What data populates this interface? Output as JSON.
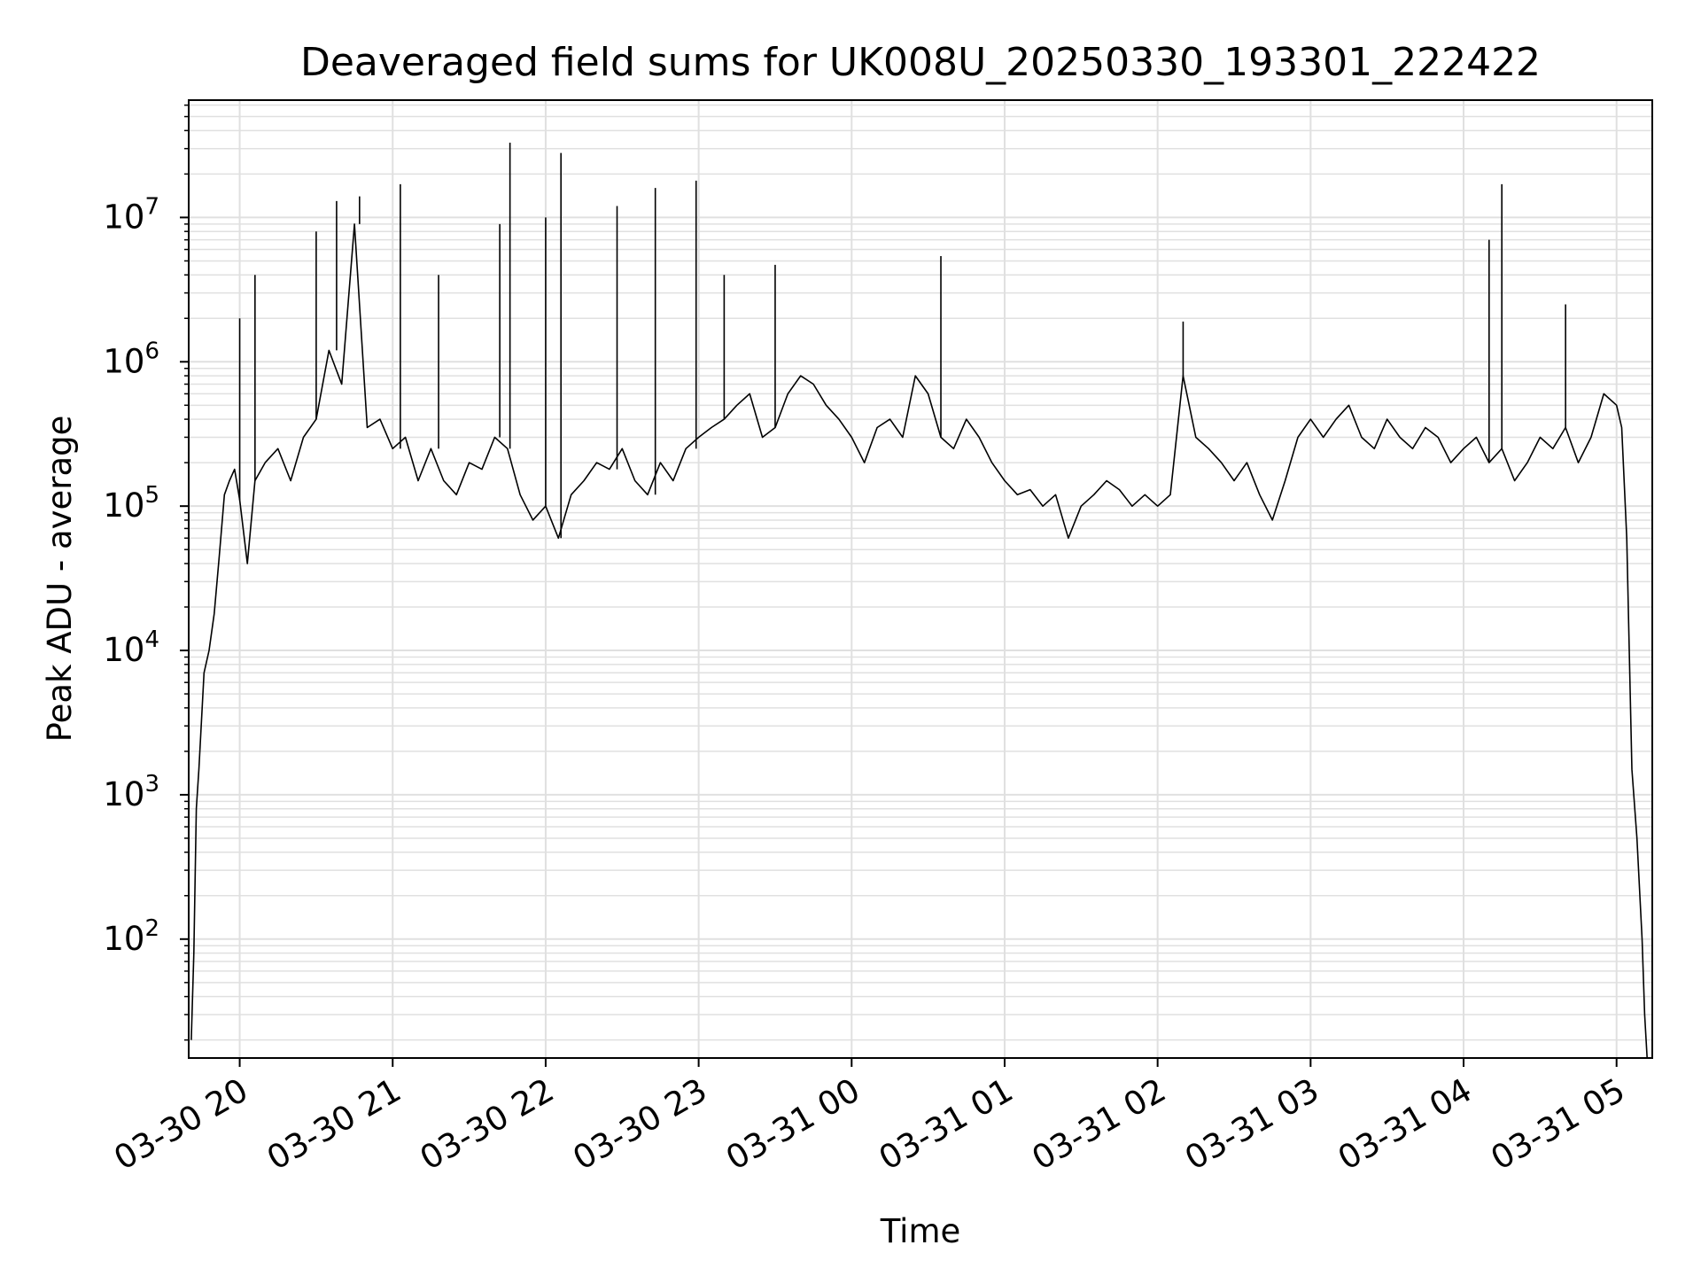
{
  "chart_data": {
    "type": "line",
    "title": "Deaveraged field sums for UK008U_20250330_193301_222422",
    "xlabel": "Time",
    "ylabel": "Peak ADU - average",
    "y_scale": "log",
    "ylim": [
      15,
      65000000
    ],
    "xlim": [
      "2025-03-30 19:40",
      "2025-03-31 05:14"
    ],
    "grid": true,
    "grid_minor": true,
    "line_color": "#000000",
    "grid_color": "#e0e0e0",
    "x_ticks": [
      {
        "t": "2025-03-30 20:00",
        "label": "03-30 20"
      },
      {
        "t": "2025-03-30 21:00",
        "label": "03-30 21"
      },
      {
        "t": "2025-03-30 22:00",
        "label": "03-30 22"
      },
      {
        "t": "2025-03-30 23:00",
        "label": "03-30 23"
      },
      {
        "t": "2025-03-31 00:00",
        "label": "03-31 00"
      },
      {
        "t": "2025-03-31 01:00",
        "label": "03-31 01"
      },
      {
        "t": "2025-03-31 02:00",
        "label": "03-31 02"
      },
      {
        "t": "2025-03-31 03:00",
        "label": "03-31 03"
      },
      {
        "t": "2025-03-31 04:00",
        "label": "03-31 04"
      },
      {
        "t": "2025-03-31 05:00",
        "label": "03-31 05"
      }
    ],
    "y_ticks": [
      {
        "value": 100,
        "base": "10",
        "exp": "2"
      },
      {
        "value": 1000,
        "base": "10",
        "exp": "3"
      },
      {
        "value": 10000,
        "base": "10",
        "exp": "4"
      },
      {
        "value": 100000,
        "base": "10",
        "exp": "5"
      },
      {
        "value": 1000000,
        "base": "10",
        "exp": "6"
      },
      {
        "value": 10000000,
        "base": "10",
        "exp": "7"
      }
    ],
    "x": [
      "2025-03-30 19:41",
      "2025-03-30 19:42",
      "2025-03-30 19:43",
      "2025-03-30 19:44",
      "2025-03-30 19:46",
      "2025-03-30 19:48",
      "2025-03-30 19:50",
      "2025-03-30 19:52",
      "2025-03-30 19:54",
      "2025-03-30 19:56",
      "2025-03-30 19:58",
      "2025-03-30 20:00",
      "2025-03-30 20:03",
      "2025-03-30 20:06",
      "2025-03-30 20:10",
      "2025-03-30 20:15",
      "2025-03-30 20:20",
      "2025-03-30 20:25",
      "2025-03-30 20:30",
      "2025-03-30 20:35",
      "2025-03-30 20:40",
      "2025-03-30 20:45",
      "2025-03-30 20:50",
      "2025-03-30 20:55",
      "2025-03-30 21:00",
      "2025-03-30 21:05",
      "2025-03-30 21:10",
      "2025-03-30 21:15",
      "2025-03-30 21:20",
      "2025-03-30 21:25",
      "2025-03-30 21:30",
      "2025-03-30 21:35",
      "2025-03-30 21:40",
      "2025-03-30 21:45",
      "2025-03-30 21:50",
      "2025-03-30 21:55",
      "2025-03-30 22:00",
      "2025-03-30 22:05",
      "2025-03-30 22:10",
      "2025-03-30 22:15",
      "2025-03-30 22:20",
      "2025-03-30 22:25",
      "2025-03-30 22:30",
      "2025-03-30 22:35",
      "2025-03-30 22:40",
      "2025-03-30 22:45",
      "2025-03-30 22:50",
      "2025-03-30 22:55",
      "2025-03-30 23:00",
      "2025-03-30 23:05",
      "2025-03-30 23:10",
      "2025-03-30 23:15",
      "2025-03-30 23:20",
      "2025-03-30 23:25",
      "2025-03-30 23:30",
      "2025-03-30 23:35",
      "2025-03-30 23:40",
      "2025-03-30 23:45",
      "2025-03-30 23:50",
      "2025-03-30 23:55",
      "2025-03-31 00:00",
      "2025-03-31 00:05",
      "2025-03-31 00:10",
      "2025-03-31 00:15",
      "2025-03-31 00:20",
      "2025-03-31 00:25",
      "2025-03-31 00:30",
      "2025-03-31 00:35",
      "2025-03-31 00:40",
      "2025-03-31 00:45",
      "2025-03-31 00:50",
      "2025-03-31 00:55",
      "2025-03-31 01:00",
      "2025-03-31 01:05",
      "2025-03-31 01:10",
      "2025-03-31 01:15",
      "2025-03-31 01:20",
      "2025-03-31 01:25",
      "2025-03-31 01:30",
      "2025-03-31 01:35",
      "2025-03-31 01:40",
      "2025-03-31 01:45",
      "2025-03-31 01:50",
      "2025-03-31 01:55",
      "2025-03-31 02:00",
      "2025-03-31 02:05",
      "2025-03-31 02:10",
      "2025-03-31 02:15",
      "2025-03-31 02:20",
      "2025-03-31 02:25",
      "2025-03-31 02:30",
      "2025-03-31 02:35",
      "2025-03-31 02:40",
      "2025-03-31 02:45",
      "2025-03-31 02:50",
      "2025-03-31 02:55",
      "2025-03-31 03:00",
      "2025-03-31 03:05",
      "2025-03-31 03:10",
      "2025-03-31 03:15",
      "2025-03-31 03:20",
      "2025-03-31 03:25",
      "2025-03-31 03:30",
      "2025-03-31 03:35",
      "2025-03-31 03:40",
      "2025-03-31 03:45",
      "2025-03-31 03:50",
      "2025-03-31 03:55",
      "2025-03-31 04:00",
      "2025-03-31 04:05",
      "2025-03-31 04:10",
      "2025-03-31 04:15",
      "2025-03-31 04:20",
      "2025-03-31 04:25",
      "2025-03-31 04:30",
      "2025-03-31 04:35",
      "2025-03-31 04:40",
      "2025-03-31 04:45",
      "2025-03-31 04:50",
      "2025-03-31 04:55",
      "2025-03-31 05:00",
      "2025-03-31 05:02",
      "2025-03-31 05:04",
      "2025-03-31 05:06",
      "2025-03-31 05:08",
      "2025-03-31 05:10",
      "2025-03-31 05:11",
      "2025-03-31 05:12"
    ],
    "values": [
      20,
      80,
      800,
      1500,
      7000,
      10000,
      18000,
      45000,
      120000,
      150000,
      180000,
      110000,
      40000,
      150000,
      200000,
      250000,
      150000,
      300000,
      400000,
      1200000,
      700000,
      9000000,
      350000,
      400000,
      250000,
      300000,
      150000,
      250000,
      150000,
      120000,
      200000,
      180000,
      300000,
      250000,
      120000,
      80000,
      100000,
      60000,
      120000,
      150000,
      200000,
      180000,
      250000,
      150000,
      120000,
      200000,
      150000,
      250000,
      300000,
      350000,
      400000,
      500000,
      600000,
      300000,
      350000,
      600000,
      800000,
      700000,
      500000,
      400000,
      300000,
      200000,
      350000,
      400000,
      300000,
      800000,
      600000,
      300000,
      250000,
      400000,
      300000,
      200000,
      150000,
      120000,
      130000,
      100000,
      120000,
      60000,
      100000,
      120000,
      150000,
      130000,
      100000,
      120000,
      100000,
      120000,
      800000,
      300000,
      250000,
      200000,
      150000,
      200000,
      120000,
      80000,
      150000,
      300000,
      400000,
      300000,
      400000,
      500000,
      300000,
      250000,
      400000,
      300000,
      250000,
      350000,
      300000,
      200000,
      250000,
      300000,
      200000,
      250000,
      150000,
      200000,
      300000,
      250000,
      350000,
      200000,
      300000,
      600000,
      500000,
      350000,
      60000,
      1500,
      500,
      100,
      30,
      15
    ],
    "spikes": [
      {
        "x": "2025-03-30 20:00",
        "value": 2000000
      },
      {
        "x": "2025-03-30 20:06",
        "value": 4000000
      },
      {
        "x": "2025-03-30 20:30",
        "value": 8000000
      },
      {
        "x": "2025-03-30 20:38",
        "value": 13000000
      },
      {
        "x": "2025-03-30 20:47",
        "value": 14000000
      },
      {
        "x": "2025-03-30 21:03",
        "value": 17000000
      },
      {
        "x": "2025-03-30 21:18",
        "value": 4000000
      },
      {
        "x": "2025-03-30 21:42",
        "value": 9000000
      },
      {
        "x": "2025-03-30 21:46",
        "value": 33000000
      },
      {
        "x": "2025-03-30 22:00",
        "value": 10000000
      },
      {
        "x": "2025-03-30 22:06",
        "value": 28000000
      },
      {
        "x": "2025-03-30 22:28",
        "value": 12000000
      },
      {
        "x": "2025-03-30 22:43",
        "value": 16000000
      },
      {
        "x": "2025-03-30 22:59",
        "value": 18000000
      },
      {
        "x": "2025-03-30 23:10",
        "value": 4000000
      },
      {
        "x": "2025-03-30 23:30",
        "value": 4700000
      },
      {
        "x": "2025-03-31 00:35",
        "value": 5400000
      },
      {
        "x": "2025-03-31 02:10",
        "value": 1900000
      },
      {
        "x": "2025-03-31 04:10",
        "value": 7000000
      },
      {
        "x": "2025-03-31 04:15",
        "value": 17000000
      },
      {
        "x": "2025-03-31 04:40",
        "value": 2500000
      }
    ]
  }
}
